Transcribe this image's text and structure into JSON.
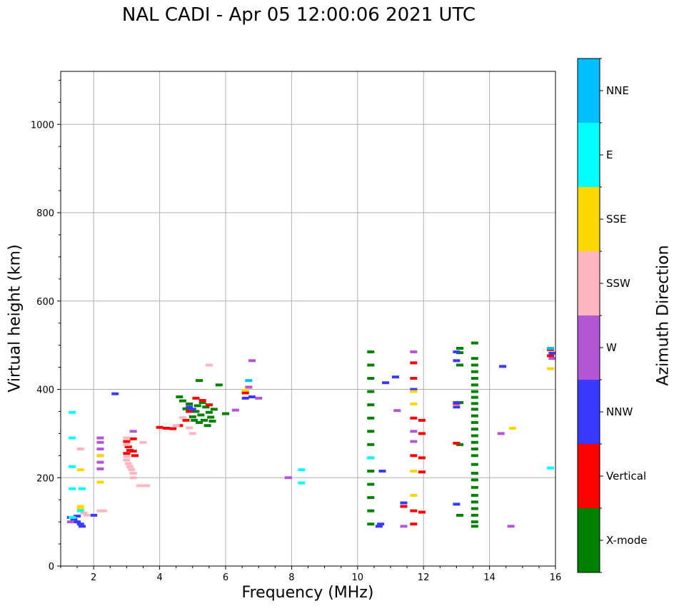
{
  "chart_data": {
    "type": "scatter",
    "title": "NAL CADI - Apr 05 12:00:06 2021 UTC",
    "xlabel": "Frequency (MHz)",
    "ylabel": "Virtual height (km)",
    "xlim": [
      1,
      16
    ],
    "ylim": [
      0,
      1120
    ],
    "x_ticks": [
      2,
      4,
      6,
      8,
      10,
      12,
      14,
      16
    ],
    "y_ticks": [
      0,
      200,
      400,
      600,
      800,
      1000
    ],
    "grid": true,
    "colorbar": {
      "label": "Azimuth Direction",
      "position": "right",
      "categories": [
        {
          "name": "X-mode",
          "color": "#008000"
        },
        {
          "name": "Vertical",
          "color": "#ff0000"
        },
        {
          "name": "NNW",
          "color": "#3a3aff"
        },
        {
          "name": "W",
          "color": "#b455d6"
        },
        {
          "name": "SSW",
          "color": "#ffb6c1"
        },
        {
          "name": "SSE",
          "color": "#ffd700"
        },
        {
          "name": "E",
          "color": "#00ffff"
        },
        {
          "name": "NNE",
          "color": "#00bfff"
        }
      ]
    },
    "series": [
      {
        "name": "X-mode",
        "points": [
          [
            4.6,
            383
          ],
          [
            4.7,
            374
          ],
          [
            4.8,
            356
          ],
          [
            4.9,
            367
          ],
          [
            5.0,
            338
          ],
          [
            5.05,
            330
          ],
          [
            5.1,
            350
          ],
          [
            5.15,
            363
          ],
          [
            5.2,
            325
          ],
          [
            5.25,
            342
          ],
          [
            5.3,
            370
          ],
          [
            5.35,
            330
          ],
          [
            5.4,
            360
          ],
          [
            5.45,
            318
          ],
          [
            5.5,
            348
          ],
          [
            5.55,
            337
          ],
          [
            5.6,
            328
          ],
          [
            5.65,
            355
          ],
          [
            5.8,
            410
          ],
          [
            6.0,
            345
          ],
          [
            5.2,
            420
          ],
          [
            10.4,
            485
          ],
          [
            10.4,
            455
          ],
          [
            10.4,
            425
          ],
          [
            10.4,
            395
          ],
          [
            10.4,
            365
          ],
          [
            10.4,
            335
          ],
          [
            10.4,
            305
          ],
          [
            10.4,
            275
          ],
          [
            10.4,
            245
          ],
          [
            10.4,
            215
          ],
          [
            10.4,
            185
          ],
          [
            10.4,
            155
          ],
          [
            10.4,
            125
          ],
          [
            10.4,
            95
          ],
          [
            13.1,
            493
          ],
          [
            13.1,
            483
          ],
          [
            13.1,
            455
          ],
          [
            13.1,
            370
          ],
          [
            13.1,
            275
          ],
          [
            13.1,
            115
          ],
          [
            13.55,
            505
          ],
          [
            13.55,
            470
          ],
          [
            13.55,
            455
          ],
          [
            13.55,
            440
          ],
          [
            13.55,
            425
          ],
          [
            13.55,
            410
          ],
          [
            13.55,
            395
          ],
          [
            13.55,
            382
          ],
          [
            13.55,
            368
          ],
          [
            13.55,
            355
          ],
          [
            13.55,
            340
          ],
          [
            13.55,
            325
          ],
          [
            13.55,
            310
          ],
          [
            13.55,
            295
          ],
          [
            13.55,
            280
          ],
          [
            13.55,
            265
          ],
          [
            13.55,
            250
          ],
          [
            13.55,
            230
          ],
          [
            13.55,
            210
          ],
          [
            13.55,
            195
          ],
          [
            13.55,
            178
          ],
          [
            13.55,
            160
          ],
          [
            13.55,
            145
          ],
          [
            13.55,
            130
          ],
          [
            13.55,
            115
          ],
          [
            13.55,
            100
          ],
          [
            13.55,
            90
          ]
        ]
      },
      {
        "name": "Vertical",
        "points": [
          [
            3.0,
            282
          ],
          [
            3.05,
            270
          ],
          [
            3.1,
            262
          ],
          [
            3.0,
            255
          ],
          [
            3.2,
            288
          ],
          [
            3.2,
            260
          ],
          [
            3.25,
            250
          ],
          [
            4.0,
            314
          ],
          [
            4.2,
            312
          ],
          [
            4.4,
            311
          ],
          [
            4.6,
            318
          ],
          [
            4.8,
            330
          ],
          [
            4.9,
            350
          ],
          [
            5.1,
            380
          ],
          [
            5.3,
            375
          ],
          [
            5.5,
            365
          ],
          [
            6.6,
            392
          ],
          [
            11.7,
            460
          ],
          [
            11.7,
            425
          ],
          [
            11.7,
            400
          ],
          [
            11.7,
            335
          ],
          [
            11.7,
            250
          ],
          [
            11.7,
            125
          ],
          [
            11.7,
            95
          ],
          [
            11.95,
            330
          ],
          [
            11.95,
            300
          ],
          [
            11.95,
            245
          ],
          [
            11.95,
            213
          ],
          [
            11.95,
            122
          ],
          [
            11.4,
            135
          ],
          [
            13.0,
            368
          ],
          [
            13.0,
            278
          ],
          [
            15.85,
            476
          ],
          [
            15.85,
            490
          ]
        ]
      },
      {
        "name": "NNW",
        "points": [
          [
            1.3,
            110
          ],
          [
            1.4,
            105
          ],
          [
            1.5,
            100
          ],
          [
            1.6,
            95
          ],
          [
            1.65,
            90
          ],
          [
            1.5,
            113
          ],
          [
            2.0,
            115
          ],
          [
            2.65,
            390
          ],
          [
            4.9,
            360
          ],
          [
            5.0,
            355
          ],
          [
            6.6,
            380
          ],
          [
            6.8,
            383
          ],
          [
            10.65,
            90
          ],
          [
            10.7,
            95
          ],
          [
            10.75,
            215
          ],
          [
            10.85,
            415
          ],
          [
            11.15,
            428
          ],
          [
            11.4,
            143
          ],
          [
            11.7,
            400
          ],
          [
            13.0,
            360
          ],
          [
            13.0,
            370
          ],
          [
            13.0,
            465
          ],
          [
            13.0,
            485
          ],
          [
            13.0,
            140
          ],
          [
            14.4,
            452
          ],
          [
            15.9,
            482
          ]
        ]
      },
      {
        "name": "W",
        "points": [
          [
            1.3,
            100
          ],
          [
            2.2,
            290
          ],
          [
            2.2,
            280
          ],
          [
            2.2,
            265
          ],
          [
            2.2,
            250
          ],
          [
            2.2,
            235
          ],
          [
            2.2,
            220
          ],
          [
            3.2,
            305
          ],
          [
            6.3,
            353
          ],
          [
            6.7,
            405
          ],
          [
            6.8,
            465
          ],
          [
            7.0,
            380
          ],
          [
            7.9,
            200
          ],
          [
            11.2,
            352
          ],
          [
            11.4,
            90
          ],
          [
            11.7,
            485
          ],
          [
            11.7,
            305
          ],
          [
            11.7,
            282
          ],
          [
            14.35,
            300
          ],
          [
            14.65,
            90
          ],
          [
            15.9,
            470
          ]
        ]
      },
      {
        "name": "SSW",
        "points": [
          [
            1.6,
            265
          ],
          [
            1.7,
            120
          ],
          [
            1.8,
            115
          ],
          [
            2.2,
            125
          ],
          [
            2.3,
            125
          ],
          [
            3.0,
            290
          ],
          [
            3.0,
            275
          ],
          [
            3.0,
            248
          ],
          [
            3.0,
            240
          ],
          [
            3.05,
            232
          ],
          [
            3.1,
            225
          ],
          [
            3.15,
            218
          ],
          [
            3.2,
            210
          ],
          [
            3.2,
            200
          ],
          [
            3.5,
            280
          ],
          [
            3.4,
            182
          ],
          [
            3.6,
            182
          ],
          [
            4.5,
            318
          ],
          [
            4.7,
            336
          ],
          [
            4.9,
            313
          ],
          [
            5.0,
            300
          ],
          [
            5.5,
            455
          ]
        ]
      },
      {
        "name": "SSE",
        "points": [
          [
            1.6,
            218
          ],
          [
            1.6,
            135
          ],
          [
            1.6,
            130
          ],
          [
            2.2,
            190
          ],
          [
            2.2,
            250
          ],
          [
            6.6,
            398
          ],
          [
            11.7,
            395
          ],
          [
            11.7,
            367
          ],
          [
            11.7,
            215
          ],
          [
            11.7,
            160
          ],
          [
            14.7,
            312
          ],
          [
            15.85,
            447
          ]
        ]
      },
      {
        "name": "E",
        "points": [
          [
            1.35,
            348
          ],
          [
            1.35,
            290
          ],
          [
            1.35,
            225
          ],
          [
            1.35,
            175
          ],
          [
            1.35,
            110
          ],
          [
            1.65,
            175
          ],
          [
            1.6,
            125
          ],
          [
            8.3,
            218
          ],
          [
            8.3,
            188
          ],
          [
            10.4,
            245
          ],
          [
            15.85,
            222
          ]
        ]
      },
      {
        "name": "NNE",
        "points": [
          [
            6.7,
            420
          ],
          [
            15.85,
            493
          ]
        ]
      }
    ]
  }
}
